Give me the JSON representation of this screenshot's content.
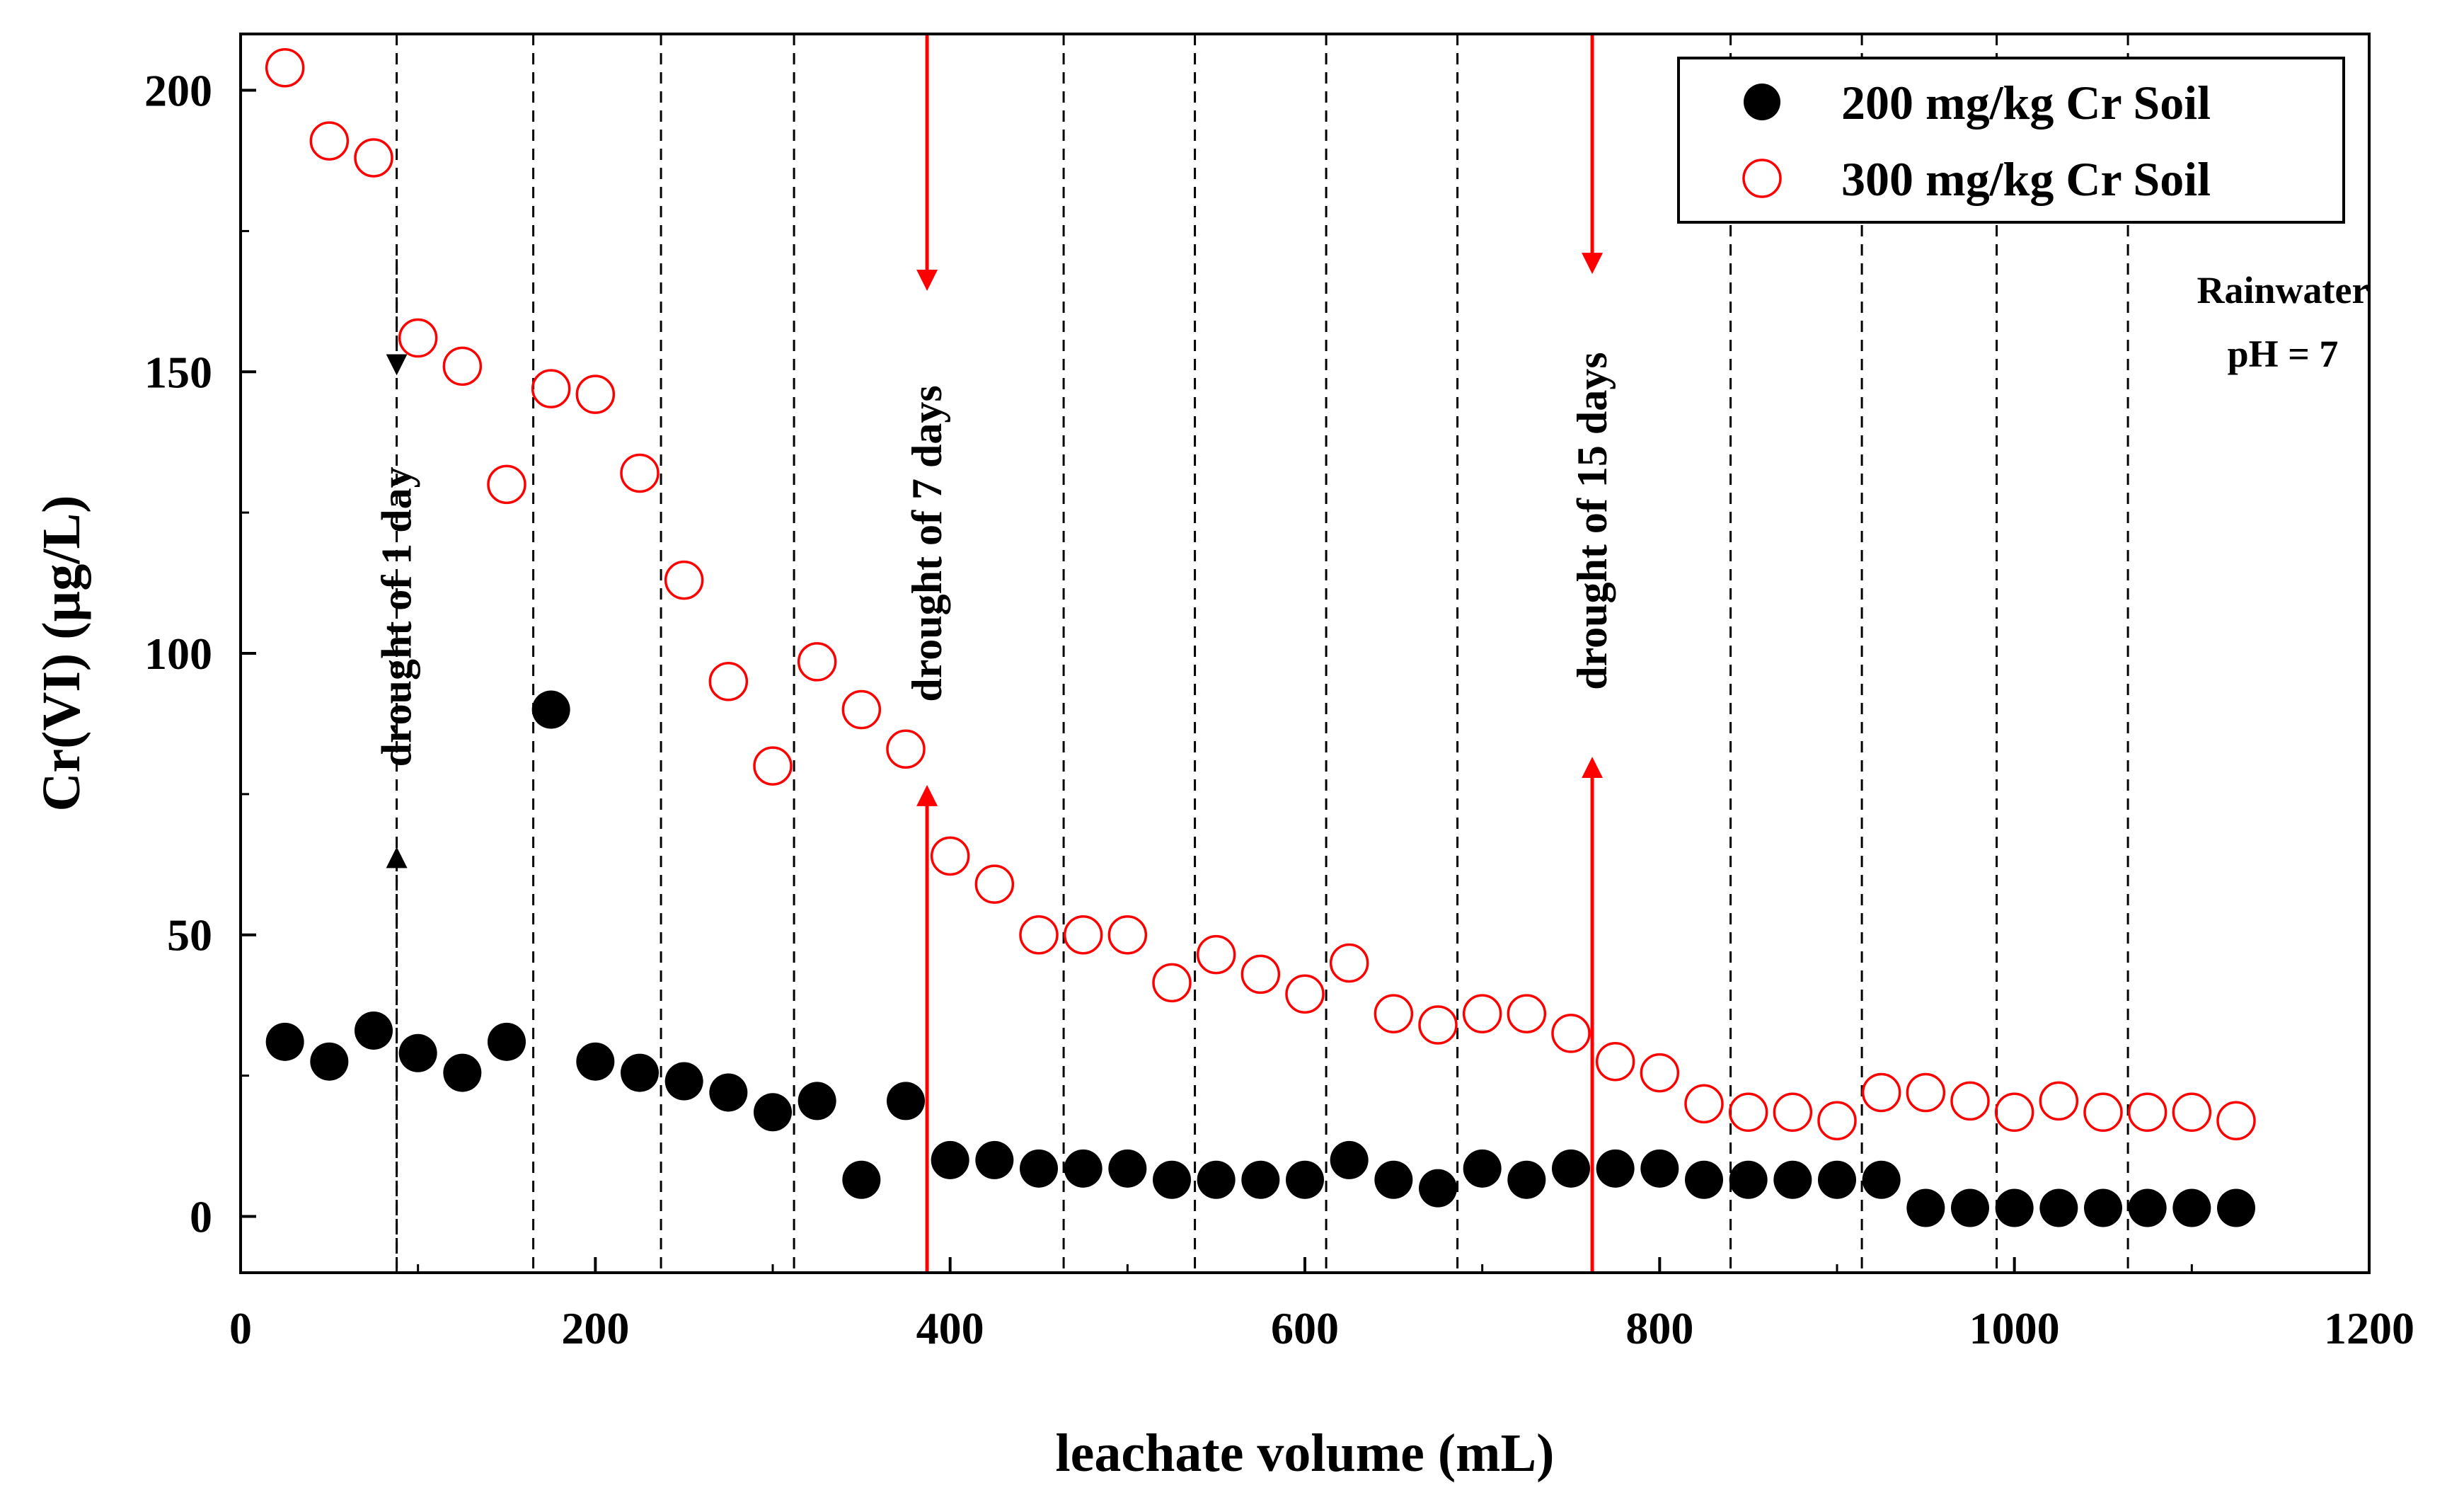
{
  "chart_data": {
    "type": "scatter",
    "title": "",
    "xlabel": "leachate volume (mL)",
    "ylabel": "Cr(VI)  (µg/L)",
    "xlim": [
      0,
      1200
    ],
    "ylim": [
      -10,
      210
    ],
    "xticks": [
      0,
      200,
      400,
      600,
      800,
      1000,
      1200
    ],
    "yticks": [
      0,
      50,
      100,
      150,
      200
    ],
    "legend_position": "top-right",
    "series": [
      {
        "name": "200 mg/kg Cr Soil",
        "marker": "filled-circle",
        "color": "#000000",
        "x": [
          25,
          50,
          75,
          100,
          125,
          150,
          175,
          200,
          225,
          250,
          275,
          300,
          325,
          350,
          375,
          400,
          425,
          450,
          475,
          500,
          525,
          550,
          575,
          600,
          625,
          650,
          675,
          700,
          725,
          750,
          775,
          800,
          825,
          850,
          875,
          900,
          925,
          950,
          975,
          1000,
          1025,
          1050,
          1075,
          1100,
          1125
        ],
        "y": [
          31,
          27.5,
          33,
          29,
          25.5,
          31,
          90,
          27.5,
          25.5,
          24,
          22,
          18.5,
          20.5,
          6.5,
          20.5,
          10,
          10,
          8.5,
          8.5,
          8.5,
          6.5,
          6.5,
          6.5,
          6.5,
          10,
          6.5,
          5,
          8.5,
          6.5,
          8.5,
          8.5,
          8.5,
          6.5,
          6.5,
          6.5,
          6.5,
          6.5,
          1.5,
          1.5,
          1.5,
          1.5,
          1.5,
          1.5,
          1.5,
          1.5
        ]
      },
      {
        "name": "300 mg/kg Cr Soil",
        "marker": "open-circle",
        "color": "#ff0000",
        "x": [
          25,
          50,
          75,
          100,
          125,
          150,
          175,
          200,
          225,
          250,
          275,
          300,
          325,
          350,
          375,
          400,
          425,
          450,
          475,
          500,
          525,
          550,
          575,
          600,
          625,
          650,
          675,
          700,
          725,
          750,
          775,
          800,
          825,
          850,
          875,
          900,
          925,
          950,
          975,
          1000,
          1025,
          1050,
          1075,
          1100,
          1125
        ],
        "y": [
          204,
          191,
          188,
          156,
          151,
          130,
          147,
          146,
          132,
          113,
          95,
          80,
          98.5,
          90,
          83,
          64,
          59,
          50,
          50,
          50,
          41.5,
          46.5,
          43,
          39.5,
          45,
          36,
          34,
          36,
          36,
          32.5,
          27.5,
          25.5,
          20,
          18.5,
          18.5,
          17,
          22,
          22,
          20.5,
          18.5,
          20.5,
          18.5,
          18.5,
          18.5,
          17
        ]
      }
    ],
    "vertical_lines": {
      "dashed_black": [
        88,
        165,
        237,
        312,
        464,
        538,
        612,
        686,
        840,
        914,
        990,
        1064
      ],
      "solid_red": [
        387,
        762
      ]
    },
    "annotations": [
      {
        "text": "drought of 1 day",
        "x": 88,
        "color": "#000000",
        "arrow_top_y": 150,
        "arrow_bottom_y": 65
      },
      {
        "text": "drought of 7 days",
        "x": 387,
        "color": "#ff0000",
        "arrow_top_y": 165,
        "arrow_bottom_y": 76
      },
      {
        "text": "drought of 15 days",
        "x": 762,
        "color": "#ff0000",
        "arrow_top_y": 168,
        "arrow_bottom_y": 81
      }
    ],
    "rainwater_label": {
      "line1": "Rainwater",
      "line2": "pH = 7"
    }
  }
}
